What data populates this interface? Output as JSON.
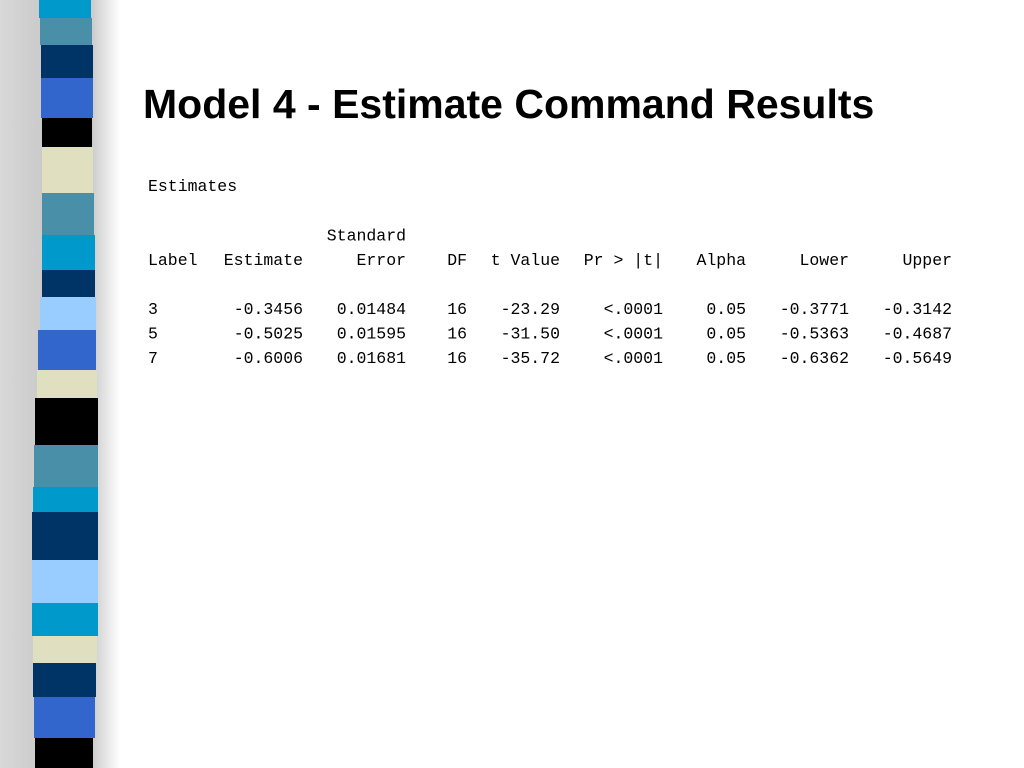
{
  "title": "Model 4 - Estimate Command Results",
  "table": {
    "caption": "Estimates",
    "header": [
      "Label",
      "Estimate",
      [
        "Standard",
        "Error"
      ],
      "DF",
      "t Value",
      "Pr > |t|",
      "Alpha",
      "Lower",
      "Upper"
    ],
    "rows": [
      [
        "3",
        "-0.3456",
        "0.01484",
        "16",
        "-23.29",
        "<.0001",
        "0.05",
        "-0.3771",
        "-0.3142"
      ],
      [
        "5",
        "-0.5025",
        "0.01595",
        "16",
        "-31.50",
        "<.0001",
        "0.05",
        "-0.5363",
        "-0.4687"
      ],
      [
        "7",
        "-0.6006",
        "0.01681",
        "16",
        "-35.72",
        "<.0001",
        "0.05",
        "-0.6362",
        "-0.5649"
      ]
    ]
  }
}
